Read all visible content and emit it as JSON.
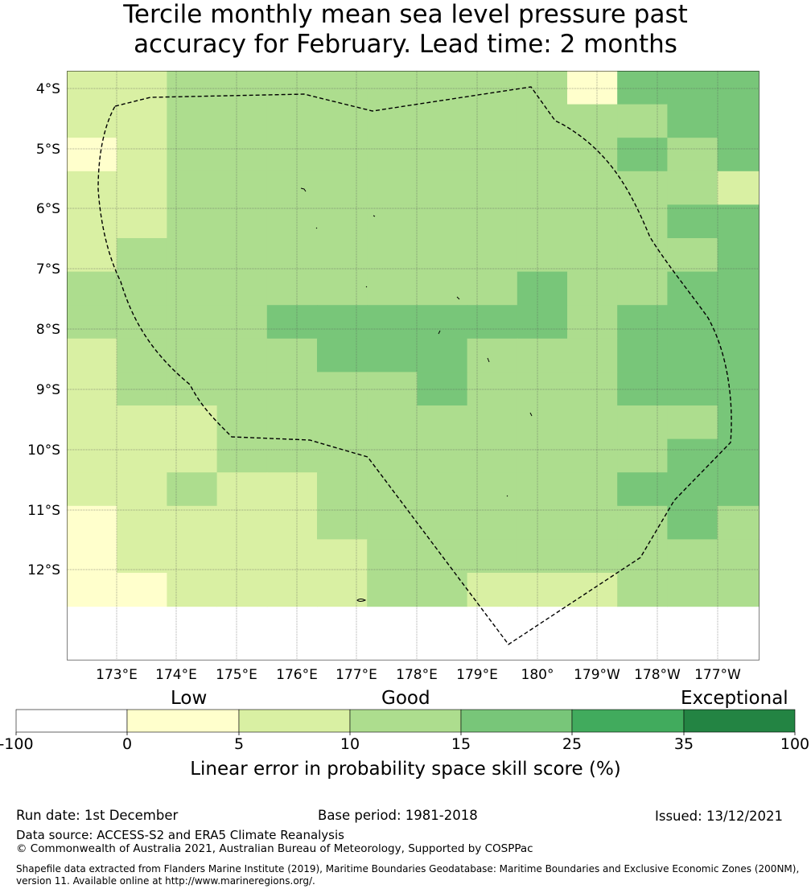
{
  "title": {
    "line1": "Tercile monthly mean sea level pressure past",
    "line2": "accuracy for February. Lead time: 2 months"
  },
  "map": {
    "lat_labels": [
      "4°S",
      "5°S",
      "6°S",
      "7°S",
      "8°S",
      "9°S",
      "10°S",
      "11°S",
      "12°S"
    ],
    "lon_labels": [
      "173°E",
      "174°E",
      "175°E",
      "176°E",
      "177°E",
      "178°E",
      "179°E",
      "180°",
      "179°W",
      "178°W",
      "177°W"
    ],
    "grid_rows": [
      "22333333331444",
      "22333333333344",
      "12333333333434",
      "22333333333332",
      "22333333333344",
      "23333333333334",
      "33333333343344",
      "33334444443444",
      "23333444333444",
      "23333334333444",
      "22233333333334",
      "22233333333344",
      "22322333333444",
      "12222333333343",
      "12222233333333",
      "01222233222333"
    ],
    "grid_colors": {
      "0": "#ffffcc",
      "1": "#ffffcc",
      "2": "#d9f0a3",
      "3": "#addd8e",
      "4": "#78c679"
    }
  },
  "legend": {
    "categories": [
      "Low",
      "Good",
      "Exceptional"
    ],
    "colors": [
      "#ffffff",
      "#ffffcc",
      "#d9f0a3",
      "#addd8e",
      "#78c679",
      "#41ab5d",
      "#238443"
    ],
    "ticks": [
      "-100",
      "0",
      "5",
      "10",
      "15",
      "25",
      "35",
      "100"
    ],
    "label": "Linear error in probability space skill score (%)"
  },
  "footer": {
    "run_date": "Run date: 1st December",
    "base_period": "Base period: 1981-2018",
    "issued": "Issued: 13/12/2021",
    "data_source": "Data source: ACCESS-S2 and ERA5 Climate Reanalysis",
    "copyright": "© Commonwealth of Australia 2021, Australian Bureau of Meteorology, Supported by COSPPac",
    "shapefile_line1": "Shapefile data extracted from Flanders Marine Institute (2019), Maritime Boundaries Geodatabase: Maritime Boundaries and Exclusive Economic Zones (200NM),",
    "shapefile_line2": "version 11. Available online at http://www.marineregions.org/."
  }
}
